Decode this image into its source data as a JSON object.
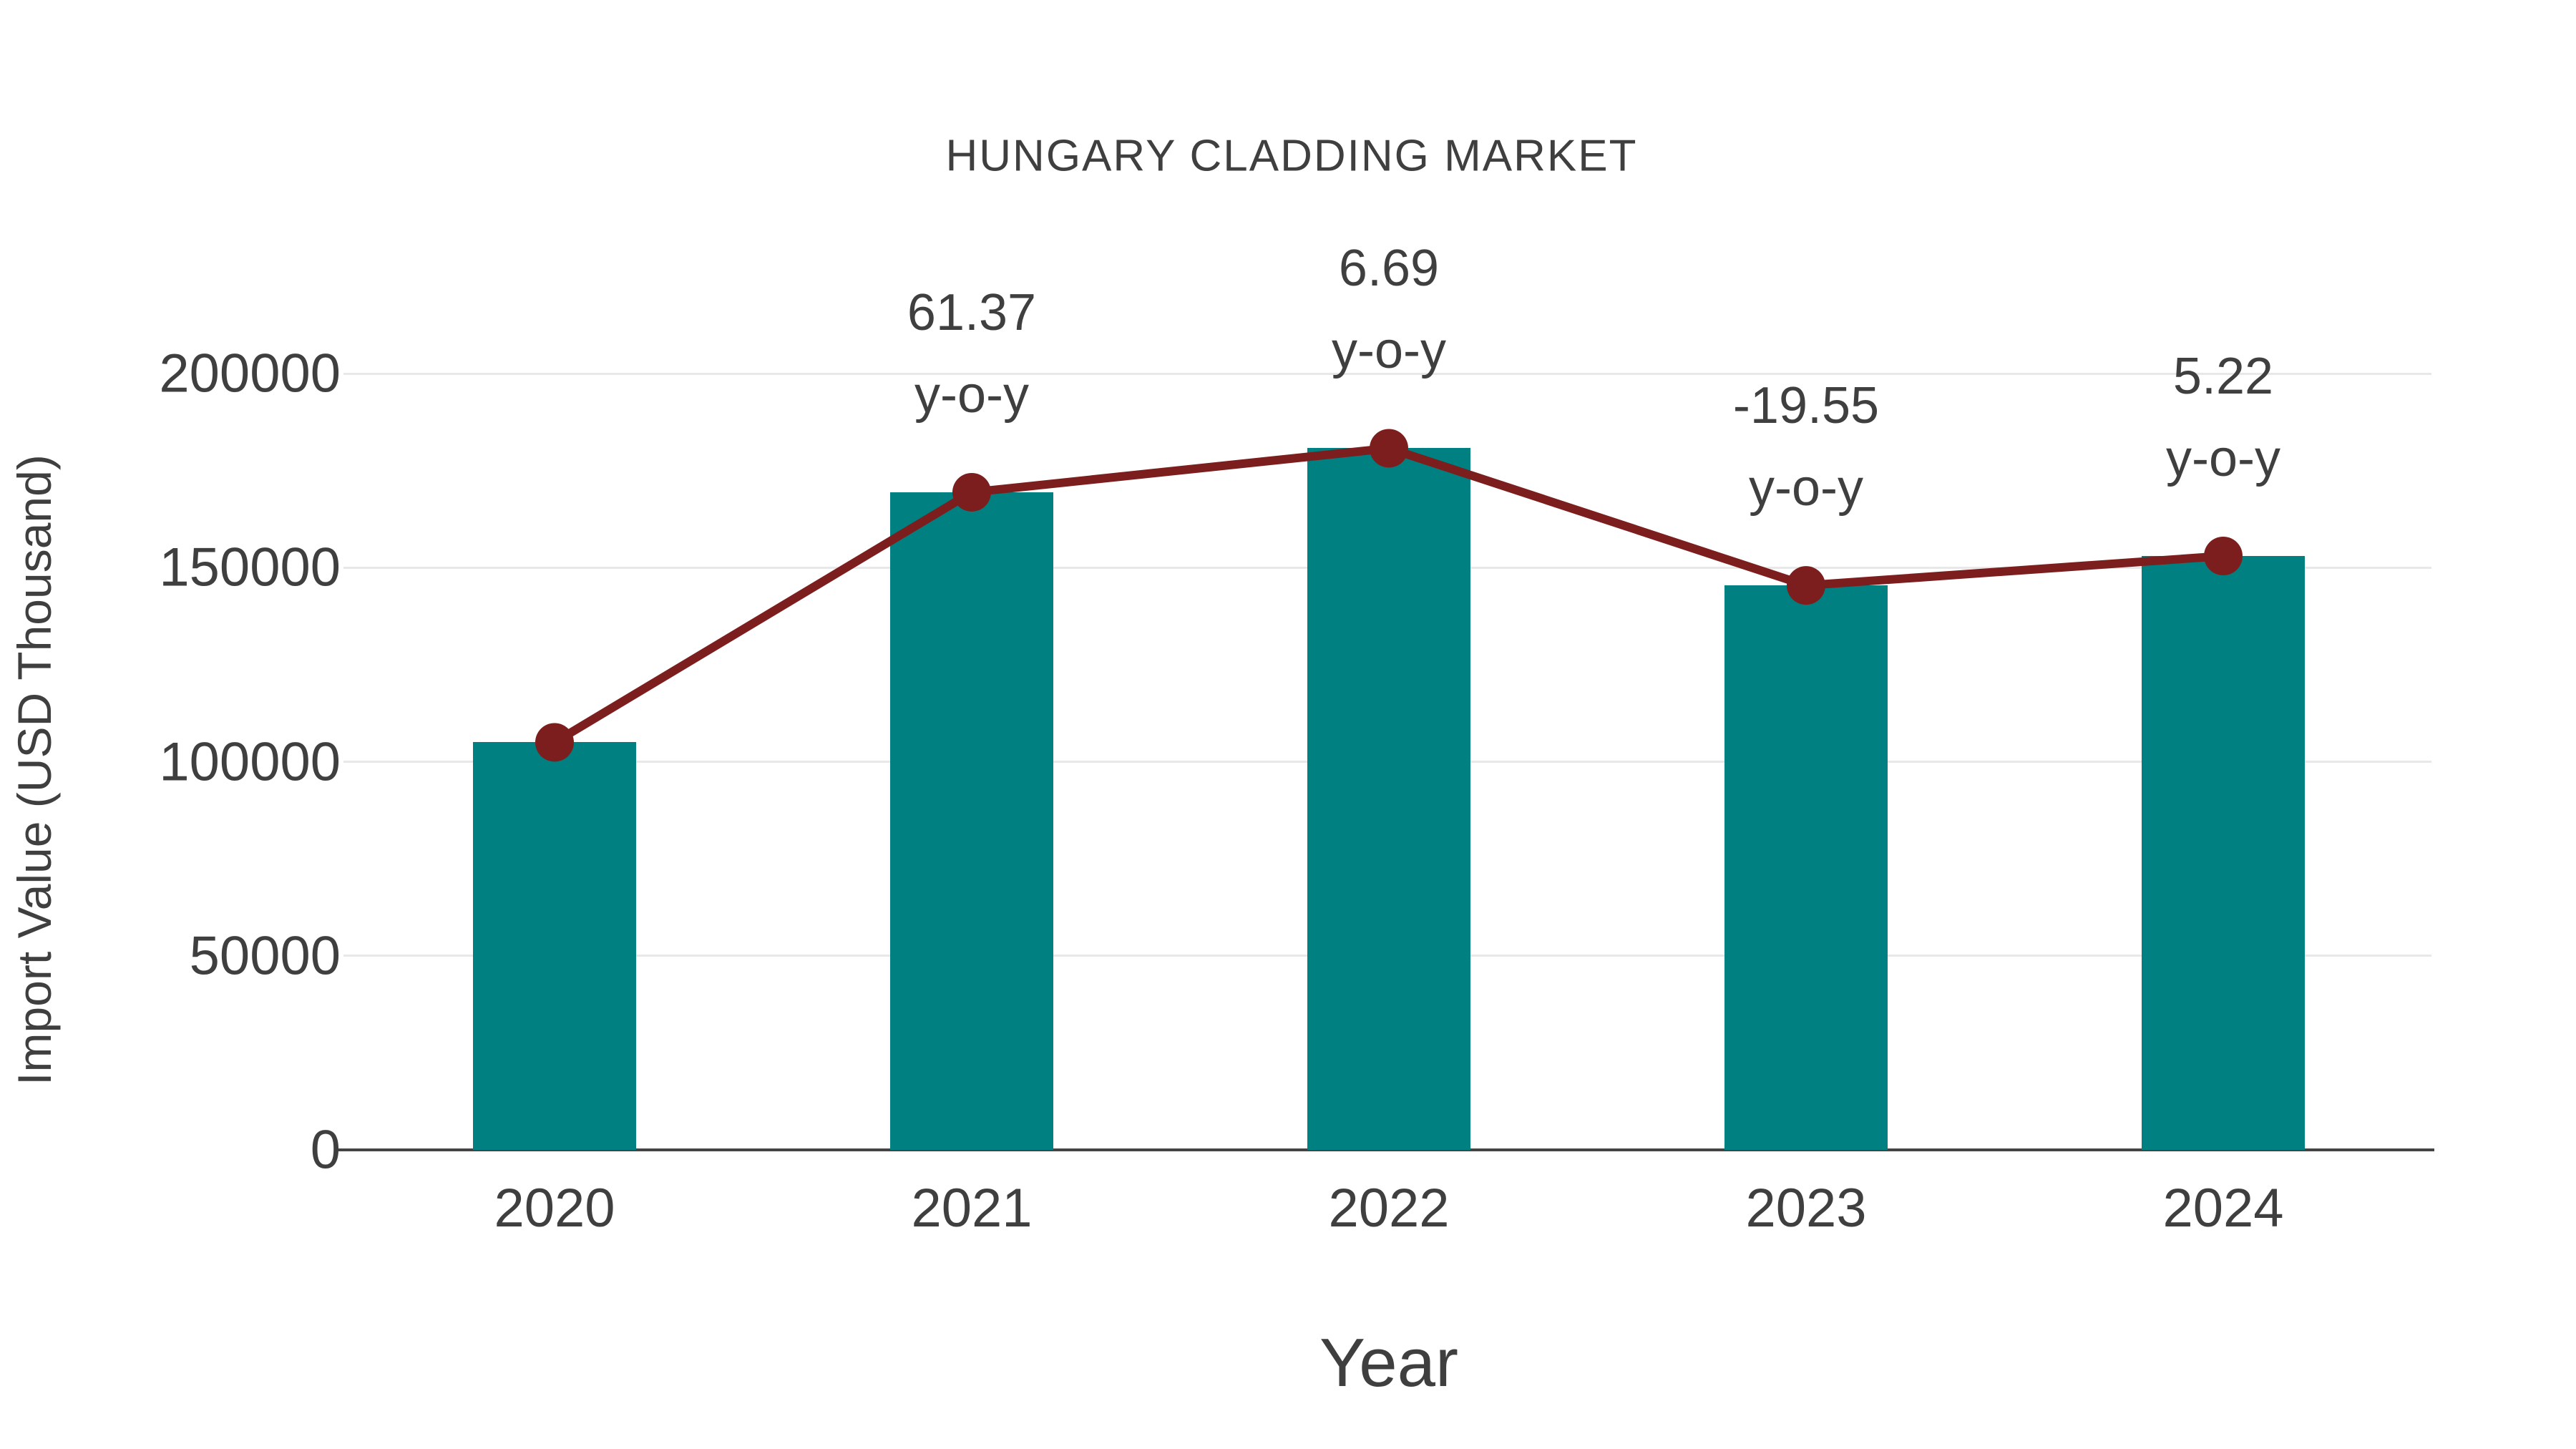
{
  "title": "HUNGARY CLADDING MARKET",
  "chart_data": {
    "type": "bar",
    "title": "HUNGARY CLADDING MARKET",
    "xlabel": "Year",
    "ylabel": "Import Value (USD Thousand)",
    "categories": [
      "2020",
      "2021",
      "2022",
      "2023",
      "2024"
    ],
    "series": [
      {
        "name": "import-value-bars",
        "type": "bar",
        "values": [
          105000,
          169439,
          180774,
          145433,
          153024
        ]
      },
      {
        "name": "import-value-trend-line",
        "type": "line",
        "values": [
          105000,
          169439,
          180774,
          145433,
          153024
        ]
      }
    ],
    "yticks": [
      {
        "value": 0,
        "label": "0"
      },
      {
        "value": 50000,
        "label": "50000"
      },
      {
        "value": 100000,
        "label": "100000"
      },
      {
        "value": 150000,
        "label": "150000"
      },
      {
        "value": 200000,
        "label": "200000"
      }
    ],
    "ylim": [
      0,
      221000
    ],
    "grid": true,
    "legend_position": "none",
    "annotations": [
      {
        "category": "2021",
        "value_text": "61.37",
        "suffix_text": "y-o-y"
      },
      {
        "category": "2022",
        "value_text": "6.69",
        "suffix_text": "y-o-y"
      },
      {
        "category": "2023",
        "value_text": "-19.55",
        "suffix_text": "y-o-y"
      },
      {
        "category": "2024",
        "value_text": "5.22",
        "suffix_text": "y-o-y"
      }
    ]
  },
  "colors": {
    "bar": "#008080",
    "line": "#7d1e1e",
    "marker": "#7d1e1e",
    "text": "#3f3f3f",
    "grid": "#e8e8e8",
    "axis": "#444444",
    "background": "#ffffff"
  }
}
